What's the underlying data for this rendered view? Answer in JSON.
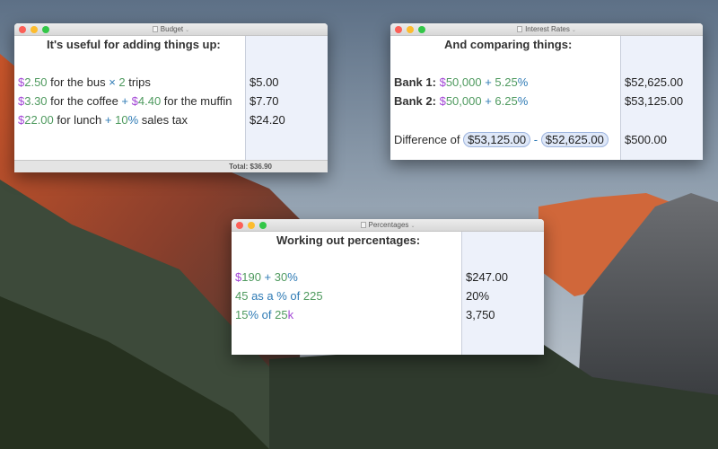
{
  "budget": {
    "title": "Budget",
    "heading": "It's useful for adding things up:",
    "status": "Total:  $36.90",
    "lines": [
      {
        "tokens": [
          {
            "t": "$",
            "c": "cur"
          },
          {
            "t": "2.50",
            "c": "num"
          },
          {
            "t": " for the bus ",
            "c": "txt"
          },
          {
            "t": "× ",
            "c": "op"
          },
          {
            "t": "2",
            "c": "num"
          },
          {
            "t": " trips",
            "c": "txt"
          }
        ],
        "answer": "$5.00"
      },
      {
        "tokens": [
          {
            "t": "$",
            "c": "cur"
          },
          {
            "t": "3.30",
            "c": "num"
          },
          {
            "t": " for the coffee ",
            "c": "txt"
          },
          {
            "t": "+ ",
            "c": "op"
          },
          {
            "t": "$",
            "c": "cur"
          },
          {
            "t": "4.40",
            "c": "num"
          },
          {
            "t": " for the muffin",
            "c": "txt"
          }
        ],
        "answer": "$7.70"
      },
      {
        "tokens": [
          {
            "t": "$",
            "c": "cur"
          },
          {
            "t": "22.00",
            "c": "num"
          },
          {
            "t": " for lunch ",
            "c": "txt"
          },
          {
            "t": "+ ",
            "c": "op"
          },
          {
            "t": "10",
            "c": "num"
          },
          {
            "t": "%",
            "c": "op"
          },
          {
            "t": " sales tax",
            "c": "txt"
          }
        ],
        "answer": "$24.20"
      }
    ]
  },
  "interest": {
    "title": "Interest Rates",
    "heading": "And comparing things:",
    "lines": [
      {
        "tokens": [
          {
            "t": "Bank 1: ",
            "c": "bold"
          },
          {
            "t": "$",
            "c": "cur"
          },
          {
            "t": "50,000",
            "c": "num"
          },
          {
            "t": " + ",
            "c": "op"
          },
          {
            "t": "5.25",
            "c": "num"
          },
          {
            "t": "%",
            "c": "op"
          }
        ],
        "answer": "$52,625.00"
      },
      {
        "tokens": [
          {
            "t": "Bank 2: ",
            "c": "bold"
          },
          {
            "t": "$",
            "c": "cur"
          },
          {
            "t": "50,000",
            "c": "num"
          },
          {
            "t": " + ",
            "c": "op"
          },
          {
            "t": "6.25",
            "c": "num"
          },
          {
            "t": "%",
            "c": "op"
          }
        ],
        "answer": "$53,125.00"
      },
      {
        "tokens": [
          {
            "t": "Difference of ",
            "c": "txt"
          },
          {
            "t": "$53,125.00",
            "c": "pill"
          },
          {
            "t": " - ",
            "c": "op"
          },
          {
            "t": "$52,625.00",
            "c": "pill"
          }
        ],
        "answer": "$500.00"
      }
    ]
  },
  "percent": {
    "title": "Percentages",
    "heading": "Working out percentages:",
    "lines": [
      {
        "tokens": [
          {
            "t": "$",
            "c": "cur"
          },
          {
            "t": "190",
            "c": "num"
          },
          {
            "t": " + ",
            "c": "op"
          },
          {
            "t": "30",
            "c": "num"
          },
          {
            "t": "%",
            "c": "op"
          }
        ],
        "answer": "$247.00"
      },
      {
        "tokens": [
          {
            "t": "45",
            "c": "num"
          },
          {
            "t": " as a % of ",
            "c": "op"
          },
          {
            "t": "225",
            "c": "num"
          }
        ],
        "answer": "20%"
      },
      {
        "tokens": [
          {
            "t": "15",
            "c": "num"
          },
          {
            "t": "%",
            "c": "op"
          },
          {
            "t": " of ",
            "c": "op"
          },
          {
            "t": "25",
            "c": "num"
          },
          {
            "t": "k",
            "c": "cur"
          }
        ],
        "answer": "3,750"
      }
    ]
  },
  "colors": {
    "currency": "#a347d6",
    "number": "#4f9a5f",
    "operator": "#2f7bb5",
    "answer_bg": "#edf1fa"
  }
}
